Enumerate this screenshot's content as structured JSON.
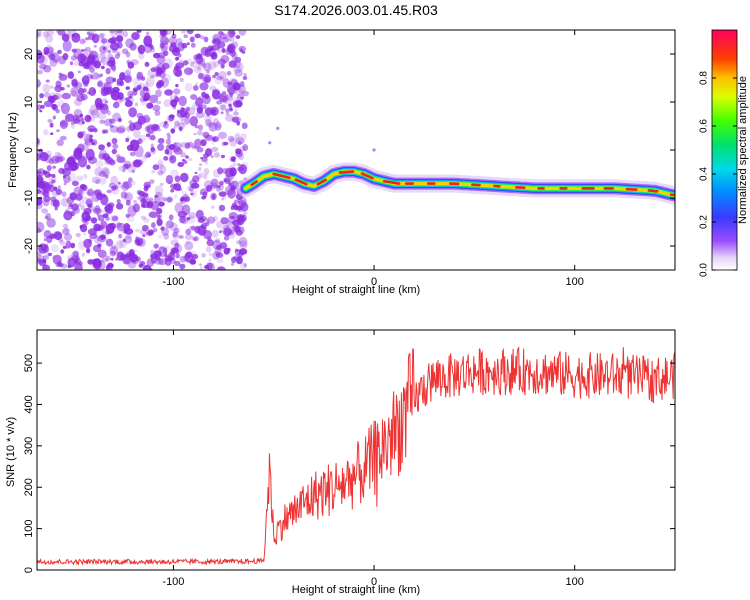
{
  "title": "S174.2026.003.01.45.R03",
  "colors": {
    "snr_line": "#ee3333",
    "ridge_core": "#ee2222",
    "noise": "#8a2be2"
  },
  "chart_data": [
    {
      "type": "heatmap",
      "name": "spectrogram",
      "xlabel": "Height of straight line (km)",
      "ylabel": "Frequency (Hz)",
      "xlim": [
        -168,
        150
      ],
      "ylim": [
        -25,
        25
      ],
      "xticks": [
        -100,
        0,
        100
      ],
      "yticks": [
        -20,
        -10,
        0,
        10,
        20
      ],
      "noise_region_x": [
        -168,
        -64
      ],
      "ridge": {
        "x": [
          -64,
          -60,
          -55,
          -50,
          -45,
          -40,
          -35,
          -30,
          -25,
          -20,
          -15,
          -10,
          -5,
          0,
          5,
          10,
          20,
          40,
          60,
          80,
          100,
          120,
          140,
          150
        ],
        "freq": [
          -8,
          -7,
          -5.5,
          -5,
          -5.5,
          -6,
          -7,
          -7.5,
          -6.5,
          -5,
          -4.5,
          -4.5,
          -5,
          -6,
          -6.5,
          -7,
          -7,
          -7,
          -7.5,
          -8,
          -8,
          -8,
          -8.5,
          -9.5
        ]
      },
      "colorbar": {
        "label": "Normalized spectral amplitude",
        "range": [
          0,
          1
        ],
        "ticks": [
          "0.0",
          "0.2",
          "0.4",
          "0.6",
          "0.8"
        ]
      }
    },
    {
      "type": "line",
      "name": "snr",
      "xlabel": "Height of straight line (km)",
      "ylabel": "SNR (10 * v/v)",
      "xlim": [
        -168,
        150
      ],
      "ylim": [
        0,
        580
      ],
      "xticks": [
        -100,
        0,
        100
      ],
      "yticks": [
        0,
        100,
        200,
        300,
        400,
        500
      ],
      "series": [
        {
          "name": "SNR",
          "x": [
            -168,
            -140,
            -100,
            -70,
            -55,
            -52,
            -50,
            -45,
            -40,
            -35,
            -30,
            -25,
            -20,
            -15,
            -10,
            -5,
            0,
            5,
            10,
            15,
            20,
            25,
            30,
            40,
            50,
            60,
            80,
            100,
            120,
            140,
            150
          ],
          "values": [
            20,
            20,
            20,
            20,
            22,
            250,
            80,
            120,
            140,
            160,
            180,
            190,
            200,
            210,
            225,
            240,
            270,
            300,
            330,
            370,
            410,
            440,
            460,
            470,
            480,
            480,
            480,
            470,
            470,
            460,
            470
          ]
        }
      ]
    }
  ]
}
